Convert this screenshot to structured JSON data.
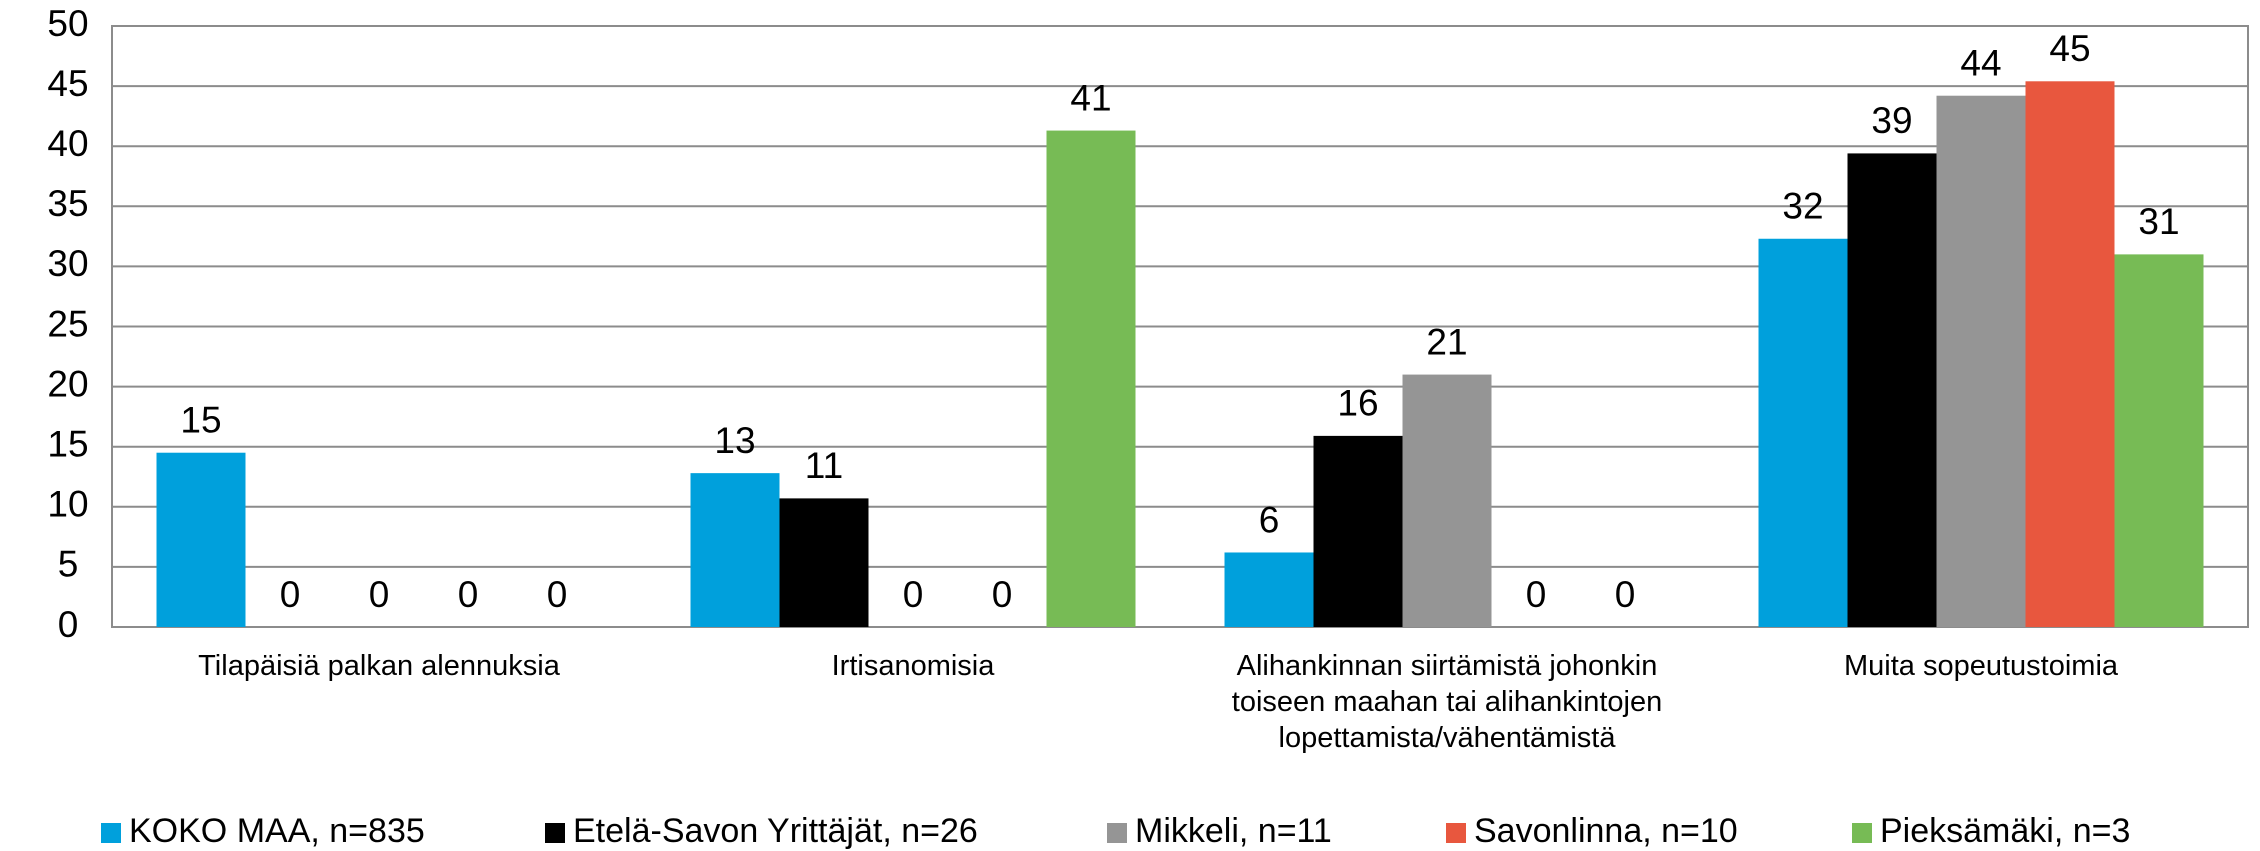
{
  "chart_data": {
    "type": "bar",
    "categories": [
      "Tilapäisiä palkan alennuksia",
      "Irtisanomisia",
      "Alihankinnan siirtämistä johonkin toiseen maahan tai alihankintojen lopettamista/vähentämistä",
      "Muita sopeutustoimia"
    ],
    "series": [
      {
        "name": "KOKO MAA, n=835",
        "color": "#00a0dc",
        "values": [
          14.5,
          12.8,
          6.2,
          32.3
        ],
        "value_labels": [
          "15",
          "13",
          "6",
          "32"
        ]
      },
      {
        "name": "Etelä-Savon Yrittäjät, n=26",
        "color": "#000000",
        "values": [
          0,
          10.7,
          15.9,
          39.4
        ],
        "value_labels": [
          "0",
          "11",
          "16",
          "39"
        ]
      },
      {
        "name": "Mikkeli, n=11",
        "color": "#959595",
        "values": [
          0,
          0,
          21,
          44.2
        ],
        "value_labels": [
          "0",
          "0",
          "21",
          "44"
        ]
      },
      {
        "name": "Savonlinna, n=10",
        "color": "#e8573e",
        "values": [
          0,
          0,
          0,
          45.4
        ],
        "value_labels": [
          "0",
          "0",
          "0",
          "45"
        ]
      },
      {
        "name": "Pieksämäki, n=3",
        "color": "#77bb55",
        "values": [
          0,
          41.3,
          0,
          31
        ],
        "value_labels": [
          "0",
          "41",
          "0",
          "31"
        ]
      }
    ],
    "ylim": [
      0,
      50
    ],
    "yticks": [
      0,
      5,
      10,
      15,
      20,
      25,
      30,
      35,
      40,
      45,
      50
    ],
    "grid": true,
    "legend": "bottom"
  }
}
